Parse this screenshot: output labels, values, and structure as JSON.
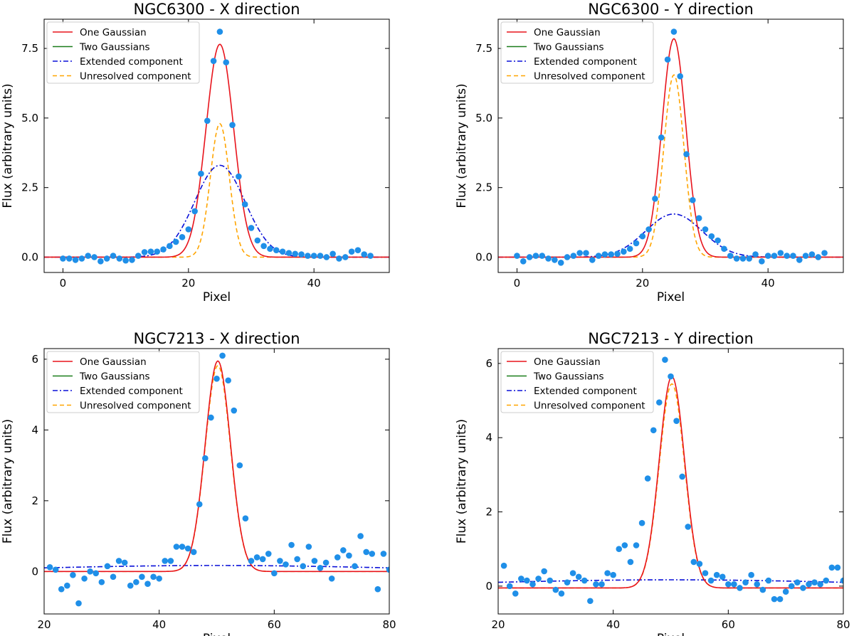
{
  "chart_data": [
    {
      "type": "line",
      "title": "NGC6300 - X direction",
      "xlabel": "Pixel",
      "ylabel": "Flux (arbitrary units)",
      "xlim": [
        -3,
        52
      ],
      "ylim": [
        -0.55,
        8.55
      ],
      "xticks": [
        0,
        20,
        40
      ],
      "xtick_labels": [
        "0",
        "20",
        "40"
      ],
      "yticks": [
        0,
        2.5,
        5,
        7.5
      ],
      "ytick_labels": [
        "0.0",
        "2.5",
        "5.0",
        "7.5"
      ],
      "legend": {
        "position": "top-left",
        "entries": [
          {
            "label": "One Gaussian",
            "color": "#e8141c",
            "style": "solid"
          },
          {
            "label": "Two Gaussians",
            "color": "#1a7d1a",
            "style": "solid"
          },
          {
            "label": "Extended component",
            "color": "#0a10d8",
            "style": "dashdot"
          },
          {
            "label": "Unresolved component",
            "color": "#ffa500",
            "style": "dashed"
          }
        ]
      },
      "points_color": "#1f8fe8",
      "points": {
        "x": [
          0,
          1,
          2,
          3,
          4,
          5,
          6,
          7,
          8,
          9,
          10,
          11,
          12,
          13,
          14,
          15,
          16,
          17,
          18,
          19,
          20,
          21,
          22,
          23,
          24,
          25,
          26,
          27,
          28,
          29,
          30,
          31,
          32,
          33,
          34,
          35,
          36,
          37,
          38,
          39,
          40,
          41,
          42,
          43,
          44,
          45,
          46,
          47,
          48,
          49
        ],
        "y": [
          -0.05,
          -0.05,
          -0.1,
          -0.05,
          0.05,
          0.0,
          -0.15,
          -0.05,
          0.05,
          -0.05,
          -0.12,
          -0.1,
          0.05,
          0.18,
          0.2,
          0.2,
          0.28,
          0.4,
          0.55,
          0.72,
          1.0,
          1.65,
          3.0,
          4.9,
          7.05,
          8.1,
          7.0,
          4.75,
          2.9,
          1.9,
          1.05,
          0.6,
          0.4,
          0.3,
          0.25,
          0.2,
          0.15,
          0.12,
          0.1,
          0.05,
          0.05,
          0.05,
          0.0,
          0.12,
          -0.05,
          0.0,
          0.2,
          0.25,
          0.1,
          0.05
        ]
      },
      "series": [
        {
          "name": "One Gaussian",
          "kind": "gaussian",
          "amp": 7.65,
          "center": 25,
          "sigma": 2.2,
          "base": 0.0
        },
        {
          "name": "Two Gaussians",
          "kind": "sum",
          "components": [
            1,
            2
          ],
          "base": 0.0
        },
        {
          "name": "Extended component",
          "kind": "gaussian",
          "amp": 3.3,
          "center": 25,
          "sigma": 4.0,
          "base": 0.0
        },
        {
          "name": "Unresolved component",
          "kind": "gaussian",
          "amp": 4.8,
          "center": 25,
          "sigma": 1.5,
          "base": 0.0
        }
      ]
    },
    {
      "type": "line",
      "title": "NGC6300 - Y direction",
      "xlabel": "Pixel",
      "ylabel": "Flux (arbitrary units)",
      "xlim": [
        -3,
        52
      ],
      "ylim": [
        -0.55,
        8.55
      ],
      "xticks": [
        0,
        20,
        40
      ],
      "xtick_labels": [
        "0",
        "20",
        "40"
      ],
      "yticks": [
        0,
        2.5,
        5,
        7.5
      ],
      "ytick_labels": [
        "0.0",
        "2.5",
        "5.0",
        "7.5"
      ],
      "legend": {
        "position": "top-left",
        "entries": [
          {
            "label": "One Gaussian",
            "color": "#e8141c",
            "style": "solid"
          },
          {
            "label": "Two Gaussians",
            "color": "#1a7d1a",
            "style": "solid"
          },
          {
            "label": "Extended component",
            "color": "#0a10d8",
            "style": "dashdot"
          },
          {
            "label": "Unresolved component",
            "color": "#ffa500",
            "style": "dashed"
          }
        ]
      },
      "points_color": "#1f8fe8",
      "points": {
        "x": [
          0,
          1,
          2,
          3,
          4,
          5,
          6,
          7,
          8,
          9,
          10,
          11,
          12,
          13,
          14,
          15,
          16,
          17,
          18,
          19,
          20,
          21,
          22,
          23,
          24,
          25,
          26,
          27,
          28,
          29,
          30,
          31,
          32,
          33,
          34,
          35,
          36,
          37,
          38,
          39,
          40,
          41,
          42,
          43,
          44,
          45,
          46,
          47,
          48,
          49
        ],
        "y": [
          0.05,
          -0.15,
          0.0,
          0.05,
          0.05,
          -0.05,
          -0.1,
          -0.2,
          0.0,
          0.05,
          0.15,
          0.15,
          -0.1,
          0.05,
          0.1,
          0.1,
          0.12,
          0.2,
          0.3,
          0.5,
          0.75,
          1.0,
          2.1,
          4.3,
          7.1,
          8.1,
          6.5,
          3.7,
          2.05,
          1.4,
          1.0,
          0.75,
          0.6,
          0.3,
          0.05,
          -0.05,
          -0.05,
          -0.05,
          0.1,
          -0.15,
          0.05,
          0.05,
          0.15,
          0.05,
          0.05,
          -0.1,
          0.05,
          0.1,
          0.0,
          0.15
        ]
      },
      "series": [
        {
          "name": "One Gaussian",
          "kind": "gaussian",
          "amp": 7.85,
          "center": 25,
          "sigma": 1.9,
          "base": 0.0
        },
        {
          "name": "Two Gaussians",
          "kind": "sum",
          "components": [
            1,
            2
          ],
          "base": 0.0
        },
        {
          "name": "Extended component",
          "kind": "gaussian",
          "amp": 1.55,
          "center": 25,
          "sigma": 4.5,
          "base": 0.0
        },
        {
          "name": "Unresolved component",
          "kind": "gaussian",
          "amp": 6.55,
          "center": 25,
          "sigma": 1.6,
          "base": 0.0
        }
      ]
    },
    {
      "type": "line",
      "title": "NGC7213 - X direction",
      "xlabel": "Pixel",
      "ylabel": "Flux (arbitrary units)",
      "xlim": [
        20,
        80
      ],
      "ylim": [
        -1.2,
        6.3
      ],
      "xticks": [
        20,
        40,
        60,
        80
      ],
      "xtick_labels": [
        "20",
        "40",
        "60",
        "80"
      ],
      "yticks": [
        0,
        2,
        4,
        6
      ],
      "ytick_labels": [
        "0",
        "2",
        "4",
        "6"
      ],
      "legend": {
        "position": "top-left",
        "entries": [
          {
            "label": "One Gaussian",
            "color": "#e8141c",
            "style": "solid"
          },
          {
            "label": "Two Gaussians",
            "color": "#1a7d1a",
            "style": "solid"
          },
          {
            "label": "Extended component",
            "color": "#0a10d8",
            "style": "dashdot"
          },
          {
            "label": "Unresolved component",
            "color": "#ffa500",
            "style": "dashed"
          }
        ]
      },
      "points_color": "#1f8fe8",
      "points": {
        "x": [
          21,
          22,
          23,
          24,
          25,
          26,
          27,
          28,
          29,
          30,
          31,
          32,
          33,
          34,
          35,
          36,
          37,
          38,
          39,
          40,
          41,
          42,
          43,
          44,
          45,
          46,
          47,
          48,
          49,
          50,
          51,
          52,
          53,
          54,
          55,
          56,
          57,
          58,
          59,
          60,
          61,
          62,
          63,
          64,
          65,
          66,
          67,
          68,
          69,
          70,
          71,
          72,
          73,
          74,
          75,
          76,
          77,
          78,
          79,
          80
        ],
        "y": [
          0.12,
          0.05,
          -0.5,
          -0.4,
          -0.1,
          -0.9,
          -0.2,
          0.0,
          -0.05,
          -0.3,
          0.15,
          -0.15,
          0.3,
          0.25,
          -0.4,
          -0.3,
          -0.15,
          -0.35,
          -0.15,
          -0.2,
          0.3,
          0.3,
          0.7,
          0.7,
          0.65,
          0.55,
          1.9,
          3.2,
          4.35,
          5.45,
          6.1,
          5.4,
          4.55,
          3.0,
          1.5,
          0.3,
          0.4,
          0.35,
          0.5,
          -0.05,
          0.3,
          0.2,
          0.75,
          0.35,
          0.15,
          0.7,
          0.3,
          0.1,
          0.25,
          -0.2,
          0.4,
          0.6,
          0.45,
          0.15,
          1.0,
          0.55,
          0.5,
          -0.5,
          0.5,
          0.05
        ]
      },
      "series": [
        {
          "name": "One Gaussian",
          "kind": "gaussian",
          "amp": 5.95,
          "center": 50.2,
          "sigma": 2.2,
          "base": 0.0
        },
        {
          "name": "Two Gaussians",
          "kind": "sum",
          "components": [
            1,
            2
          ],
          "base": 0.0
        },
        {
          "name": "Extended component",
          "kind": "gaussian",
          "amp": 0.17,
          "center": 50,
          "sigma": 30,
          "base": 0.0
        },
        {
          "name": "Unresolved component",
          "kind": "gaussian",
          "amp": 5.82,
          "center": 50.2,
          "sigma": 2.2,
          "base": 0.0
        }
      ]
    },
    {
      "type": "line",
      "title": "NGC7213 - Y direction",
      "xlabel": "Pixel",
      "ylabel": "Flux (arbitrary units)",
      "xlim": [
        20,
        80
      ],
      "ylim": [
        -0.75,
        6.4
      ],
      "xticks": [
        20,
        40,
        60,
        80
      ],
      "xtick_labels": [
        "20",
        "40",
        "60",
        "80"
      ],
      "yticks": [
        0,
        2,
        4,
        6
      ],
      "ytick_labels": [
        "0",
        "2",
        "4",
        "6"
      ],
      "legend": {
        "position": "top-left",
        "entries": [
          {
            "label": "One Gaussian",
            "color": "#e8141c",
            "style": "solid"
          },
          {
            "label": "Two Gaussians",
            "color": "#1a7d1a",
            "style": "solid"
          },
          {
            "label": "Extended component",
            "color": "#0a10d8",
            "style": "dashdot"
          },
          {
            "label": "Unresolved component",
            "color": "#ffa500",
            "style": "dashed"
          }
        ]
      },
      "points_color": "#1f8fe8",
      "points": {
        "x": [
          21,
          22,
          23,
          24,
          25,
          26,
          27,
          28,
          29,
          30,
          31,
          32,
          33,
          34,
          35,
          36,
          37,
          38,
          39,
          40,
          41,
          42,
          43,
          44,
          45,
          46,
          47,
          48,
          49,
          50,
          51,
          52,
          53,
          54,
          55,
          56,
          57,
          58,
          59,
          60,
          61,
          62,
          63,
          64,
          65,
          66,
          67,
          68,
          69,
          70,
          71,
          72,
          73,
          74,
          75,
          76,
          77,
          78,
          79,
          80
        ],
        "y": [
          0.55,
          0.0,
          -0.2,
          0.2,
          0.15,
          0.05,
          0.2,
          0.4,
          0.15,
          -0.1,
          -0.2,
          0.1,
          0.35,
          0.25,
          0.15,
          -0.4,
          0.05,
          0.05,
          0.35,
          0.3,
          1.0,
          1.1,
          0.65,
          1.1,
          1.7,
          2.9,
          4.2,
          4.95,
          6.1,
          5.65,
          4.45,
          2.95,
          1.6,
          0.65,
          0.6,
          0.35,
          0.15,
          0.3,
          0.25,
          0.05,
          0.05,
          -0.05,
          0.1,
          0.3,
          0.05,
          -0.1,
          0.15,
          -0.35,
          -0.35,
          -0.15,
          0.0,
          0.1,
          -0.05,
          0.05,
          0.1,
          0.05,
          0.15,
          0.5,
          0.5,
          0.15
        ]
      },
      "series": [
        {
          "name": "One Gaussian",
          "kind": "gaussian",
          "amp": 5.7,
          "center": 50.2,
          "sigma": 2.2,
          "base": -0.05
        },
        {
          "name": "Two Gaussians",
          "kind": "sum",
          "components": [
            1,
            2
          ],
          "base": -0.05
        },
        {
          "name": "Extended component",
          "kind": "gaussian",
          "amp": 0.17,
          "center": 50,
          "sigma": 30,
          "base": 0.0
        },
        {
          "name": "Unresolved component",
          "kind": "gaussian",
          "amp": 5.5,
          "center": 50.2,
          "sigma": 2.2,
          "base": -0.05
        }
      ]
    }
  ]
}
